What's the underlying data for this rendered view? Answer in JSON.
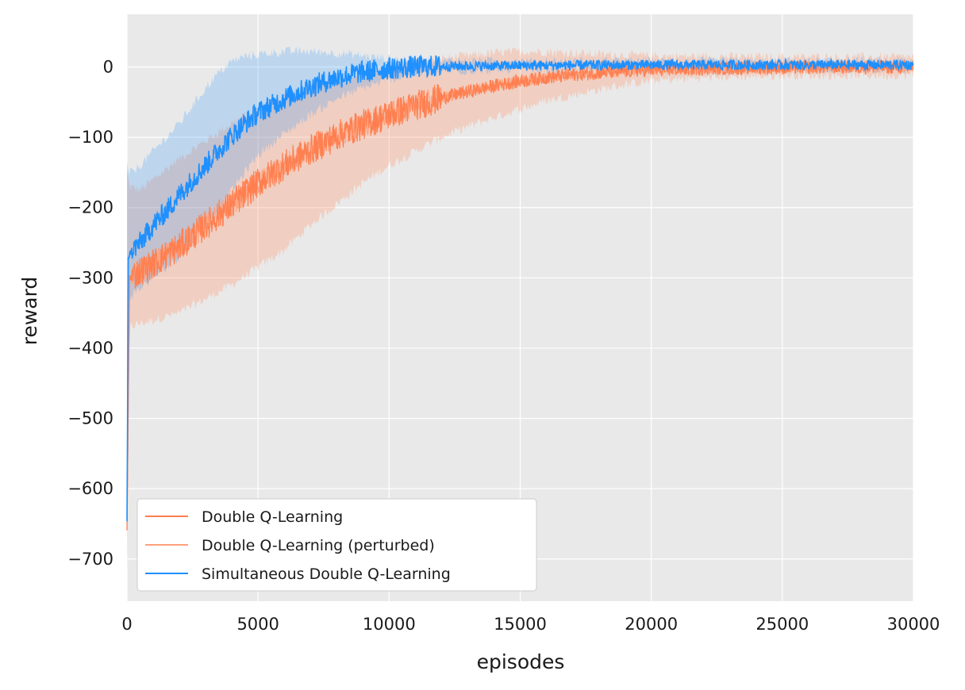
{
  "chart_data": {
    "type": "line",
    "title": "",
    "xlabel": "episodes",
    "ylabel": "reward",
    "xlim": [
      0,
      30000
    ],
    "ylim": [
      -760,
      75
    ],
    "grid": true,
    "background": "#e9e9e9",
    "legend_position": "lower-left",
    "x_ticks": [
      0,
      5000,
      10000,
      15000,
      20000,
      25000,
      30000
    ],
    "x_tick_labels": [
      "0",
      "5000",
      "10000",
      "15000",
      "20000",
      "25000",
      "30000"
    ],
    "y_ticks": [
      0,
      -100,
      -200,
      -300,
      -400,
      -500,
      -600,
      -700
    ],
    "y_tick_labels": [
      "0",
      "−100",
      "−200",
      "−300",
      "−400",
      "−500",
      "−600",
      "−700"
    ],
    "series": [
      {
        "name": "Double Q-Learning",
        "color": "#ff7f50",
        "x": [
          0,
          100,
          500,
          1000,
          2000,
          3000,
          4000,
          5000,
          6000,
          7000,
          8000,
          9000,
          10000,
          11000,
          12000,
          13000,
          14000,
          15000,
          16000,
          17000,
          18000,
          19000,
          20000,
          22000,
          25000,
          27000,
          30000
        ],
        "y": [
          -660,
          -300,
          -290,
          -280,
          -255,
          -225,
          -195,
          -165,
          -140,
          -118,
          -98,
          -82,
          -68,
          -55,
          -44,
          -35,
          -27,
          -20,
          -15,
          -11,
          -8,
          -6,
          -4,
          -2,
          -1,
          0,
          0
        ],
        "noise": 22
      },
      {
        "name": "Double Q-Learning (perturbed)",
        "color": "#ffa07a",
        "x": [
          0,
          100,
          500,
          1000,
          2000,
          3000,
          4000,
          5000,
          6000,
          7000,
          8000,
          9000,
          10000,
          11000,
          12000,
          13000,
          14000,
          15000,
          16000,
          17000,
          18000,
          19000,
          20000,
          22000,
          25000,
          27000,
          30000
        ],
        "y": [
          -660,
          -300,
          -290,
          -280,
          -255,
          -225,
          -195,
          -165,
          -140,
          -118,
          -98,
          -82,
          -68,
          -55,
          -44,
          -35,
          -27,
          -20,
          -15,
          -11,
          -8,
          -6,
          -4,
          -2,
          -1,
          0,
          0
        ],
        "band_upper": [
          -150,
          -170,
          -175,
          -160,
          -130,
          -105,
          -80,
          -58,
          -42,
          -28,
          -18,
          -8,
          0,
          6,
          12,
          16,
          20,
          22,
          22,
          20,
          18,
          17,
          16,
          15,
          14,
          14,
          14
        ],
        "band_lower": [
          -720,
          -370,
          -365,
          -360,
          -350,
          -330,
          -310,
          -285,
          -260,
          -225,
          -195,
          -165,
          -140,
          -120,
          -100,
          -85,
          -72,
          -60,
          -48,
          -40,
          -32,
          -25,
          -20,
          -15,
          -12,
          -12,
          -12
        ],
        "noise": 18
      },
      {
        "name": "Simultaneous Double Q-Learning",
        "color": "#1e90ff",
        "x": [
          0,
          50,
          200,
          500,
          1000,
          1500,
          2000,
          2500,
          3000,
          3500,
          4000,
          4500,
          5000,
          6000,
          7000,
          8000,
          9000,
          10000,
          11000,
          12000,
          15000,
          20000,
          25000,
          30000
        ],
        "y": [
          -650,
          -270,
          -260,
          -250,
          -225,
          -205,
          -182,
          -160,
          -140,
          -118,
          -98,
          -80,
          -65,
          -45,
          -28,
          -15,
          -7,
          -2,
          0,
          1,
          2,
          3,
          3,
          3
        ],
        "band_upper": [
          -140,
          -150,
          -150,
          -140,
          -120,
          -100,
          -80,
          -55,
          -30,
          -8,
          8,
          15,
          18,
          22,
          22,
          20,
          16,
          12,
          10,
          9,
          8,
          8,
          8,
          8
        ],
        "band_lower": [
          -680,
          -330,
          -325,
          -315,
          -300,
          -285,
          -270,
          -250,
          -225,
          -200,
          -175,
          -150,
          -125,
          -95,
          -68,
          -45,
          -30,
          -18,
          -10,
          -6,
          -4,
          -3,
          -3,
          -3
        ],
        "noise": 16
      }
    ]
  }
}
